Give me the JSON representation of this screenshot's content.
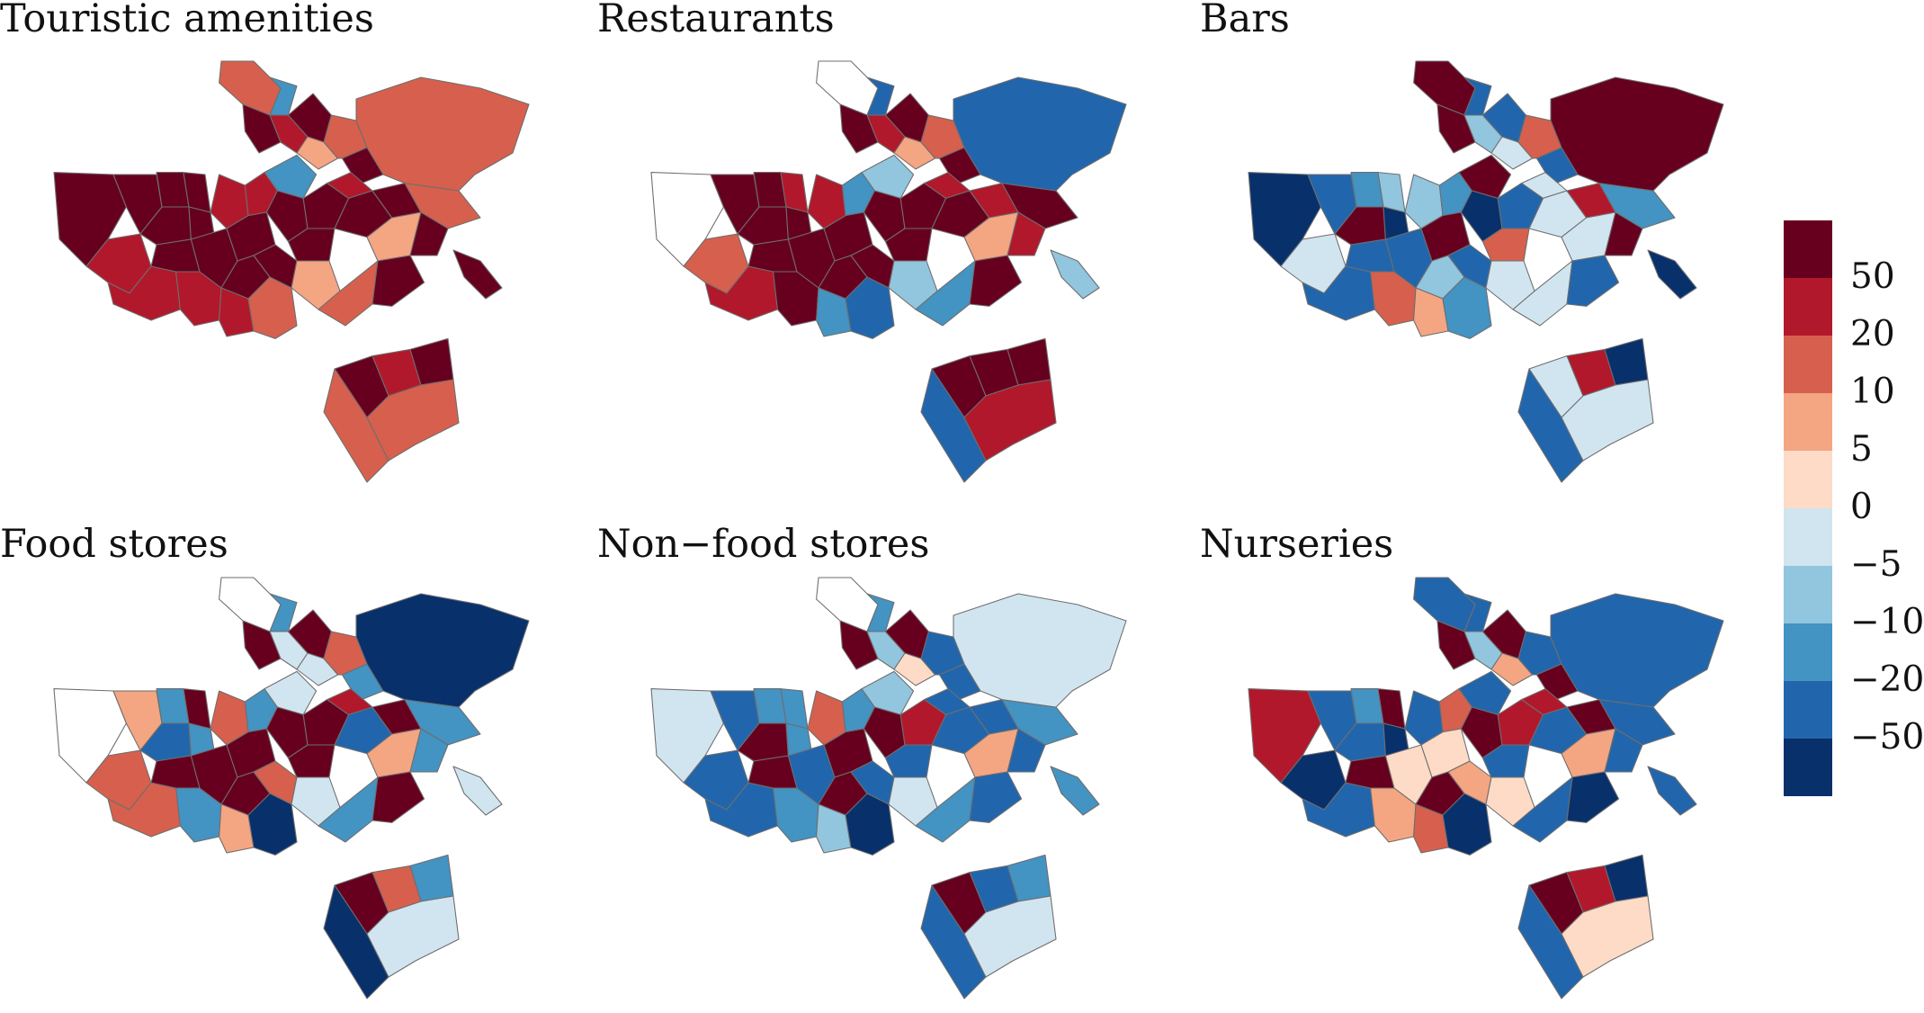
{
  "palette": {
    "white": "#ffffff",
    "v_neg50": "#08306b",
    "v_neg20": "#2166ac",
    "v_neg10": "#4393c3",
    "v_neg5": "#92c5de",
    "v_0": "#d1e5f0",
    "v_5": "#fddbc7",
    "v_10": "#f4a582",
    "v_20": "#d6604d",
    "v_50": "#b2182b",
    "v_max": "#67001f",
    "border": "#6e6e6e"
  },
  "panels": [
    {
      "title": "Touristic amenities",
      "fills": [
        "v_max",
        "v_max",
        "v_max",
        "v_50",
        "v_max",
        "v_max",
        "v_50",
        "v_max",
        "v_max",
        "v_20",
        "v_neg10",
        "v_max",
        "v_50",
        "v_max",
        "v_10",
        "v_20",
        "v_max",
        "v_50",
        "v_50",
        "v_neg10",
        "v_max",
        "v_max",
        "v_50",
        "v_max",
        "v_max",
        "v_10",
        "v_50",
        "v_max",
        "v_max",
        "v_max",
        "v_50",
        "v_max",
        "v_20",
        "v_max",
        "v_10",
        "v_20",
        "v_max",
        "v_20",
        "v_max",
        "v_max",
        "v_20",
        "v_max",
        "v_50",
        "v_max",
        "v_20",
        "v_20"
      ]
    },
    {
      "title": "Restaurants",
      "fills": [
        "white",
        "v_max",
        "v_max",
        "v_20",
        "v_max",
        "v_50",
        "v_50",
        "v_max",
        "v_max",
        "white",
        "v_neg20",
        "v_max",
        "v_50",
        "v_max",
        "v_10",
        "v_20",
        "v_max",
        "v_50",
        "v_neg10",
        "v_neg5",
        "v_max",
        "v_max",
        "v_50",
        "v_max",
        "v_50",
        "v_10",
        "v_max",
        "v_max",
        "v_max",
        "v_max",
        "v_neg10",
        "v_max",
        "v_neg20",
        "v_max",
        "v_neg5",
        "v_neg10",
        "v_max",
        "v_max",
        "v_50",
        "v_neg5",
        "v_neg20",
        "v_max",
        "v_max",
        "v_max",
        "v_neg20",
        "v_50"
      ]
    },
    {
      "title": "Bars",
      "fills": [
        "v_neg50",
        "v_neg20",
        "v_neg10",
        "v_0",
        "v_max",
        "v_neg5",
        "v_neg20",
        "v_neg20",
        "v_neg50",
        "v_max",
        "v_neg20",
        "v_max",
        "v_neg5",
        "v_neg20",
        "v_0",
        "v_20",
        "v_neg20",
        "v_neg5",
        "v_neg10",
        "v_max",
        "v_neg50",
        "v_neg20",
        "v_0",
        "v_0",
        "v_50",
        "v_0",
        "v_20",
        "v_neg20",
        "v_max",
        "v_neg5",
        "v_10",
        "v_neg20",
        "v_neg10",
        "v_20",
        "v_0",
        "v_0",
        "v_neg20",
        "v_neg10",
        "v_max",
        "v_neg50",
        "v_max",
        "v_0",
        "v_50",
        "v_neg50",
        "v_neg20",
        "v_0"
      ]
    },
    {
      "title": "Food stores",
      "fills": [
        "white",
        "v_10",
        "v_neg10",
        "v_20",
        "v_neg20",
        "v_max",
        "v_20",
        "v_max",
        "v_neg10",
        "white",
        "v_neg10",
        "v_max",
        "v_0",
        "v_max",
        "v_0",
        "v_20",
        "v_neg10",
        "v_20",
        "v_neg10",
        "v_0",
        "v_max",
        "v_max",
        "v_50",
        "v_neg20",
        "v_max",
        "v_10",
        "v_neg10",
        "v_max",
        "v_max",
        "v_max",
        "v_10",
        "v_20",
        "v_neg50",
        "v_max",
        "v_0",
        "v_neg10",
        "v_max",
        "v_neg10",
        "v_neg10",
        "v_0",
        "v_neg50",
        "v_max",
        "v_20",
        "v_neg10",
        "v_neg50",
        "v_0"
      ]
    },
    {
      "title": "Non−food stores",
      "fills": [
        "v_0",
        "v_neg20",
        "v_neg10",
        "v_neg20",
        "v_max",
        "v_neg10",
        "v_neg20",
        "v_max",
        "v_neg10",
        "white",
        "v_neg10",
        "v_max",
        "v_neg5",
        "v_max",
        "v_5",
        "v_neg20",
        "v_neg20",
        "v_20",
        "v_neg10",
        "v_neg5",
        "v_max",
        "v_50",
        "v_neg20",
        "v_neg20",
        "v_neg20",
        "v_10",
        "v_neg10",
        "v_neg20",
        "v_max",
        "v_max",
        "v_neg5",
        "v_neg20",
        "v_neg50",
        "v_neg20",
        "v_0",
        "v_neg10",
        "v_neg20",
        "v_neg10",
        "v_neg20",
        "v_neg10",
        "v_0",
        "v_max",
        "v_neg20",
        "v_neg10",
        "v_neg20",
        "v_0"
      ]
    },
    {
      "title": "Nurseries",
      "fills": [
        "v_50",
        "v_neg20",
        "v_neg10",
        "v_neg50",
        "v_neg20",
        "v_max",
        "v_neg20",
        "v_max",
        "v_neg50",
        "v_neg20",
        "v_neg20",
        "v_max",
        "v_neg5",
        "v_max",
        "v_10",
        "v_neg20",
        "v_max",
        "v_neg20",
        "v_20",
        "v_neg20",
        "v_max",
        "v_50",
        "v_50",
        "v_neg20",
        "v_max",
        "v_10",
        "v_10",
        "v_5",
        "v_5",
        "v_max",
        "v_20",
        "v_10",
        "v_neg50",
        "v_neg20",
        "v_5",
        "v_neg20",
        "v_neg50",
        "v_neg20",
        "v_neg20",
        "v_neg20",
        "v_neg20",
        "v_max",
        "v_50",
        "v_neg50",
        "v_neg20",
        "v_5"
      ]
    }
  ],
  "legend": {
    "swatches": [
      "v_max",
      "v_50",
      "v_20",
      "v_10",
      "v_5",
      "v_0",
      "v_neg5",
      "v_neg10",
      "v_neg20",
      "v_neg50"
    ],
    "labels": [
      "50",
      "20",
      "10",
      "5",
      "0",
      "−5",
      "−10",
      "−20",
      "−50"
    ]
  }
}
